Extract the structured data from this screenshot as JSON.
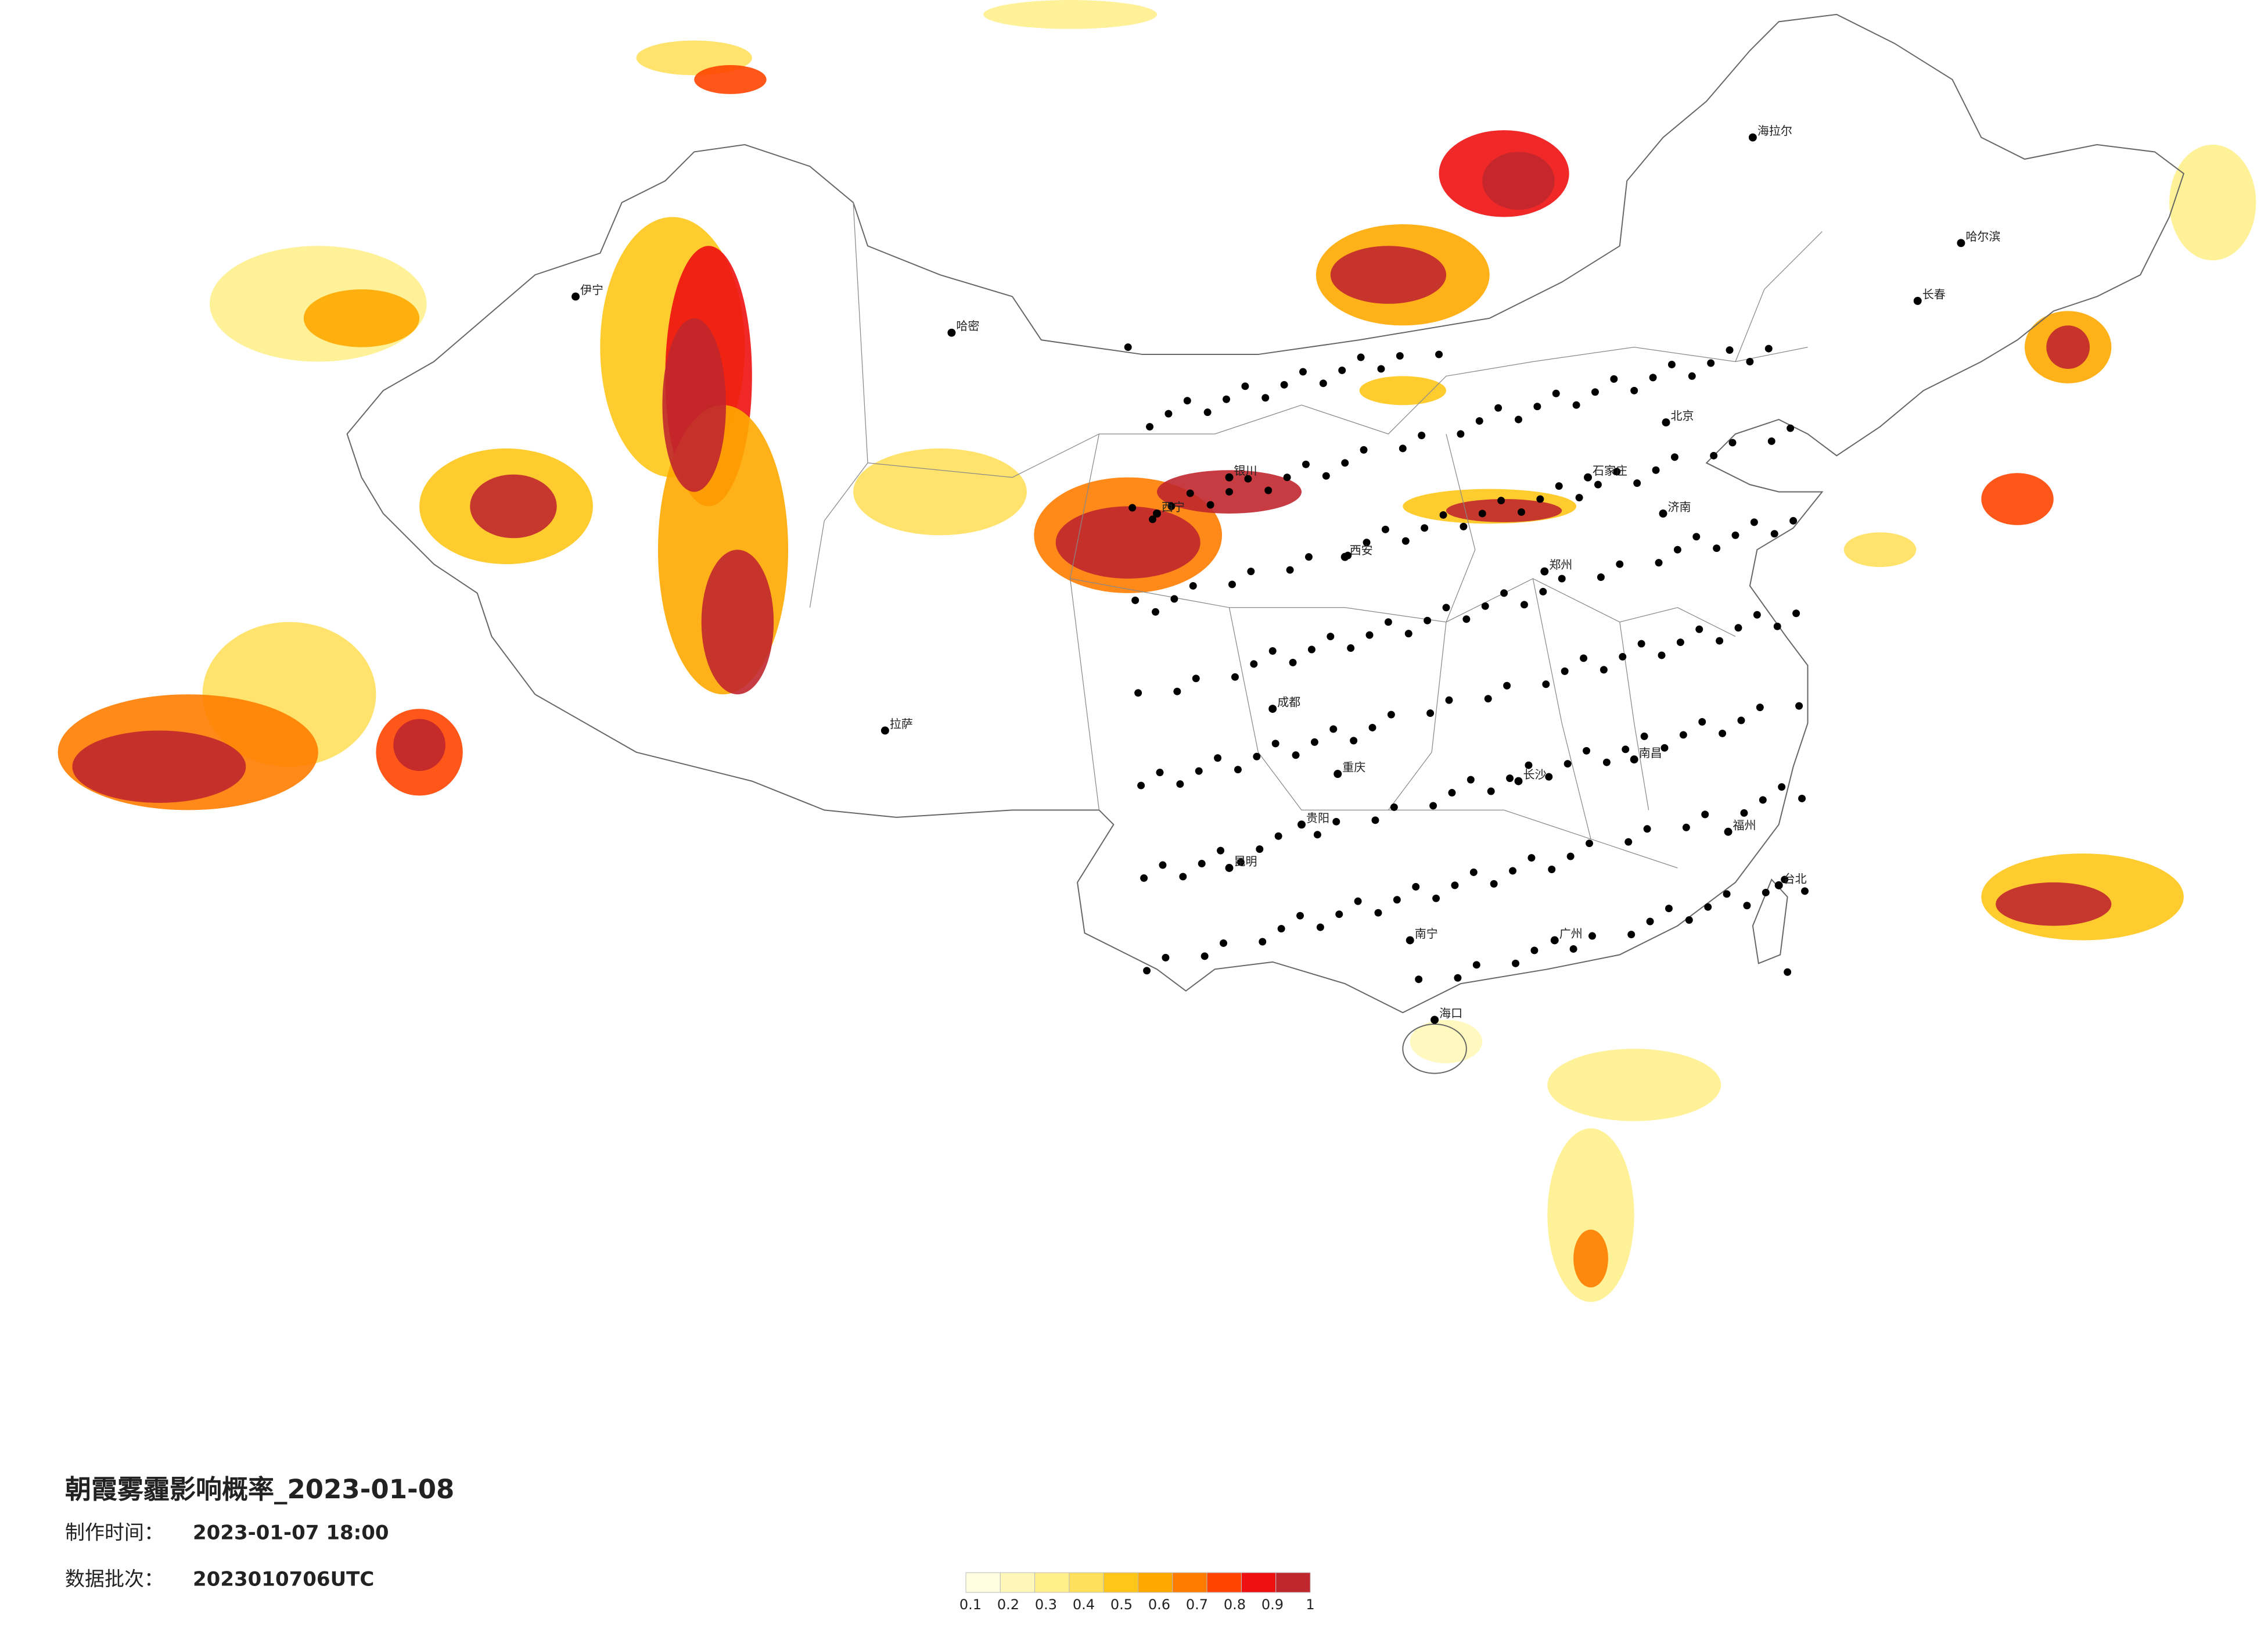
{
  "title": "朝霞雾霾影响概率_2023-01-08",
  "issue": {
    "label": "制作时间：",
    "value": "2023-01-07 18:00"
  },
  "batch": {
    "label": "数据批次：",
    "value": "2023010706UTC"
  },
  "legend": {
    "colors": [
      "#fffde2",
      "#fff7b8",
      "#fff08c",
      "#ffe05c",
      "#ffc61a",
      "#ffa800",
      "#ff7c00",
      "#ff4400",
      "#ee1111",
      "#c0272d"
    ],
    "ticks": [
      0.1,
      0.2,
      0.3,
      0.4,
      0.5,
      0.6,
      0.7,
      0.8,
      0.9,
      1
    ]
  },
  "cities": [
    {
      "name": "哈尔滨"
    },
    {
      "name": "长春"
    },
    {
      "name": "北京"
    },
    {
      "name": "石家庄"
    },
    {
      "name": "济南"
    },
    {
      "name": "郑州"
    },
    {
      "name": "西安"
    },
    {
      "name": "成都"
    },
    {
      "name": "重庆"
    },
    {
      "name": "长沙"
    },
    {
      "name": "南昌"
    },
    {
      "name": "福州"
    },
    {
      "name": "广州"
    },
    {
      "name": "南宁"
    },
    {
      "name": "昆明"
    },
    {
      "name": "贵阳"
    },
    {
      "name": "拉萨"
    },
    {
      "name": "西宁"
    },
    {
      "name": "银川"
    },
    {
      "name": "海口"
    },
    {
      "name": "台北"
    },
    {
      "name": "伊宁"
    },
    {
      "name": "哈密"
    },
    {
      "name": "海拉尔"
    }
  ]
}
